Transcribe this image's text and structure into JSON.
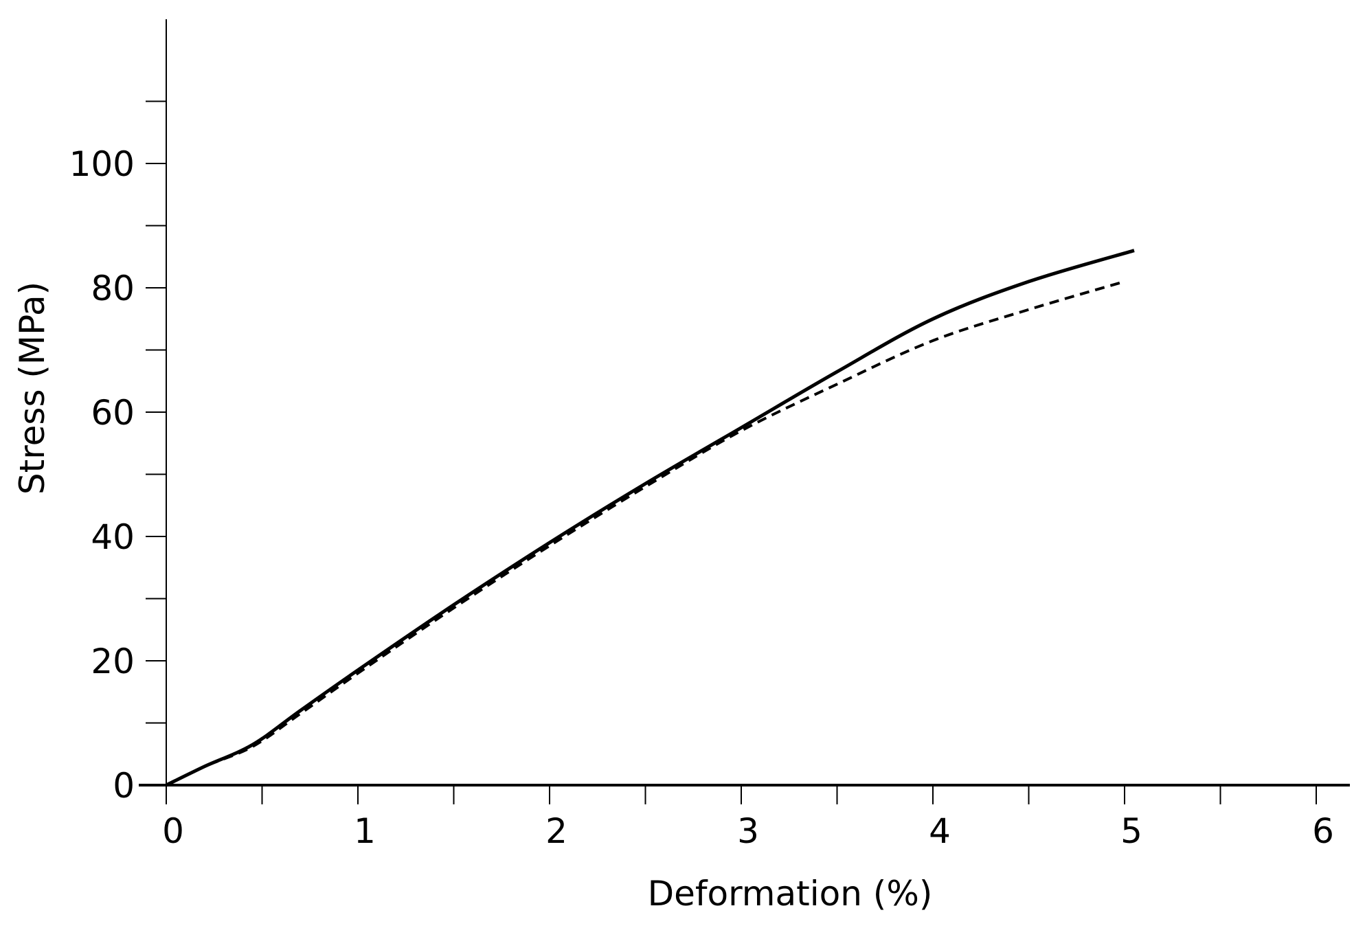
{
  "chart_data": {
    "type": "line",
    "title": "",
    "xlabel": "Deformation (%)",
    "ylabel": "Stress (MPa)",
    "xlim": [
      0,
      6.2
    ],
    "ylim": [
      0,
      120
    ],
    "x_ticks": [
      0,
      1,
      2,
      3,
      4,
      5,
      6
    ],
    "x_minor_step": 0.5,
    "y_ticks": [
      0,
      20,
      40,
      60,
      80,
      100
    ],
    "y_minor_step": 10,
    "grid": false,
    "legend": "none",
    "series": [
      {
        "style": "solid",
        "color": "#000000",
        "x": [
          0,
          0.2,
          0.45,
          0.7,
          1.0,
          1.5,
          2.0,
          2.5,
          3.0,
          3.5,
          4.0,
          4.5,
          5.05
        ],
        "y": [
          0,
          3,
          6.5,
          12,
          18.5,
          29,
          39,
          48.5,
          57.5,
          66.5,
          75,
          81,
          86
        ]
      },
      {
        "style": "dashed",
        "color": "#000000",
        "x": [
          0,
          0.2,
          0.45,
          0.7,
          1.0,
          1.5,
          2.0,
          2.5,
          3.0,
          3.5,
          4.0,
          4.5,
          5.0
        ],
        "y": [
          0,
          3,
          6.2,
          11.5,
          18,
          28.5,
          38.5,
          48,
          57,
          64.5,
          71.5,
          76.5,
          81
        ]
      }
    ]
  }
}
